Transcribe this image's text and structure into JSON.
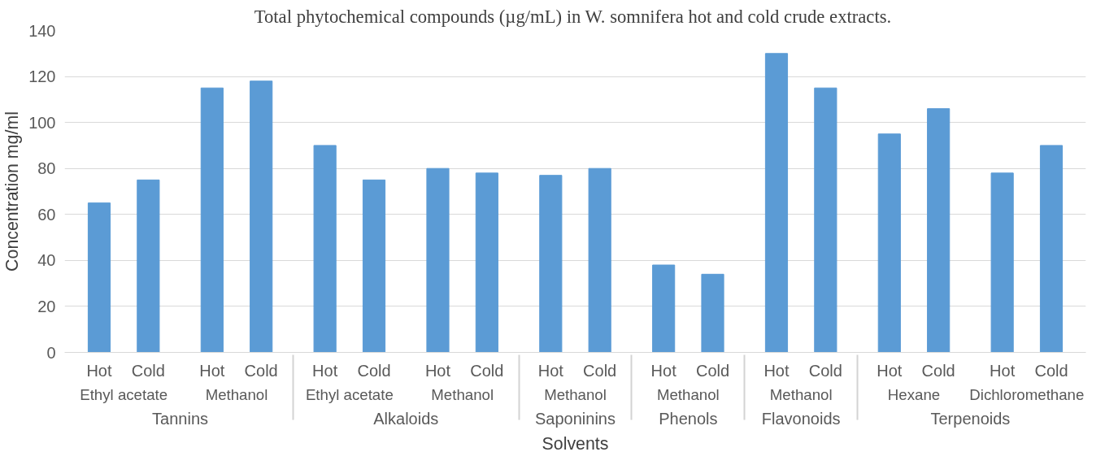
{
  "chart_data": {
    "type": "bar",
    "title": "Total phytochemical  compounds (µg/mL) in W. somnifera hot and cold crude extracts.",
    "xlabel": "Solvents",
    "ylabel": "Concentration mg/ml",
    "categories": [
      [
        "Tannins",
        "Ethyl acetate",
        "Hot"
      ],
      [
        null,
        null,
        "Cold"
      ],
      [
        null,
        "Methanol",
        "Hot"
      ],
      [
        null,
        null,
        "Cold"
      ],
      [
        "Alkaloids",
        "Ethyl acetate",
        "Hot"
      ],
      [
        null,
        null,
        "Cold"
      ],
      [
        null,
        "Methanol",
        "Hot"
      ],
      [
        null,
        null,
        "Cold"
      ],
      [
        "Saponinins",
        "Methanol",
        "Hot"
      ],
      [
        null,
        null,
        "Cold"
      ],
      [
        "Phenols",
        "Methanol",
        "Hot"
      ],
      [
        null,
        null,
        "Cold"
      ],
      [
        "Flavonoids",
        "Methanol",
        "Hot"
      ],
      [
        null,
        null,
        "Cold"
      ],
      [
        "Terpenoids",
        "Hexane",
        "Hot"
      ],
      [
        null,
        null,
        "Cold"
      ],
      [
        null,
        "Dichloromethane",
        "Hot"
      ],
      [
        null,
        null,
        "Cold"
      ]
    ],
    "values": [
      65,
      75,
      115,
      118,
      90,
      75,
      80,
      78,
      77,
      80,
      38,
      34,
      130,
      115,
      95,
      106,
      78,
      90
    ],
    "color": "#5b9bd5",
    "ylim": [
      0,
      140
    ],
    "yticks": [
      0,
      20,
      40,
      60,
      80,
      100,
      120,
      140
    ],
    "grid": "y"
  }
}
